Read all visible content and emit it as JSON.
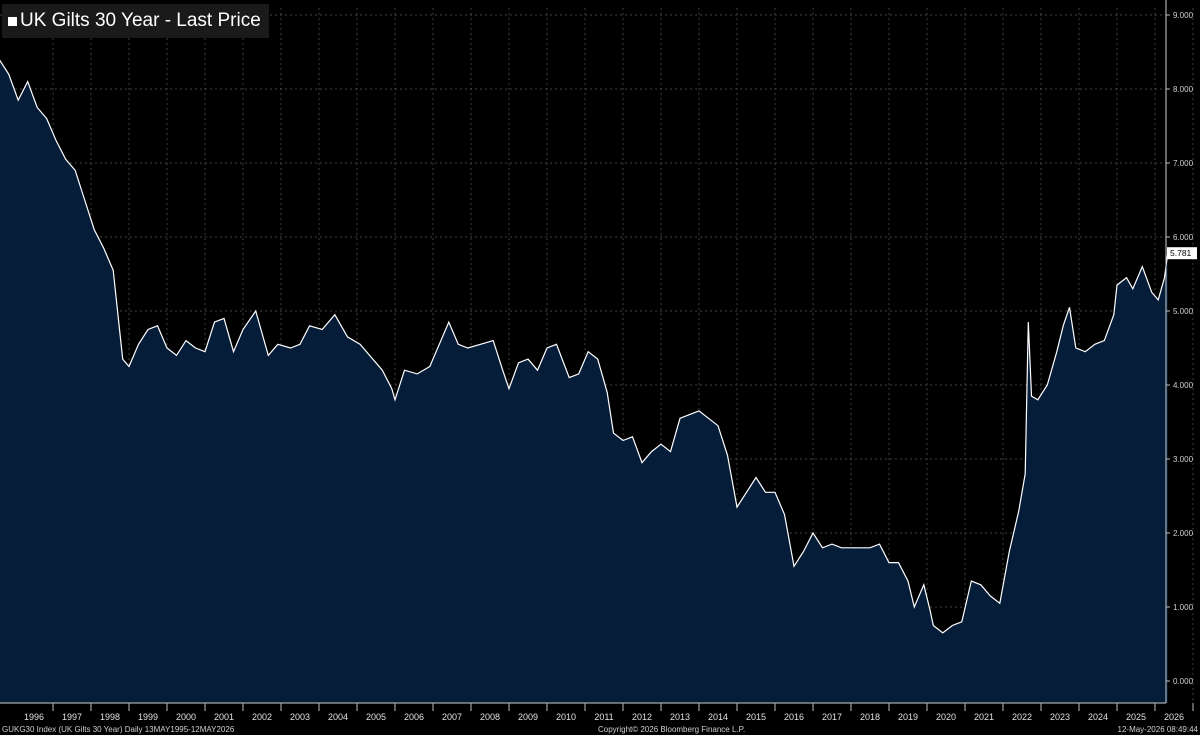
{
  "legend": {
    "label": "UK Gilts 30 Year - Last Price"
  },
  "footer": {
    "left": "GUKG30 Index (UK Gilts 30 Year) Daily 13MAY1995-12MAY2026",
    "center": "Copyright© 2026 Bloomberg Finance L.P.",
    "right": "12-May-2026 08:49:44"
  },
  "colors": {
    "background": "#000000",
    "area_fill": "#061d3a",
    "line": "#ffffff",
    "grid": "#5a5a5a",
    "last_label_bg": "#ffffff",
    "last_label_text": "#000000"
  },
  "chart_data": {
    "type": "area",
    "title": "UK Gilts 30 Year - Last Price",
    "xlabel": "",
    "ylabel": "",
    "x_ticks": [
      "1996",
      "1997",
      "1998",
      "1999",
      "2000",
      "2001",
      "2002",
      "2003",
      "2004",
      "2005",
      "2006",
      "2007",
      "2008",
      "2009",
      "2010",
      "2011",
      "2012",
      "2013",
      "2014",
      "2015",
      "2016",
      "2017",
      "2018",
      "2019",
      "2020",
      "2021",
      "2022",
      "2023",
      "2024",
      "2025",
      "2026"
    ],
    "y_ticks": [
      "0.000",
      "1.000",
      "2.000",
      "3.000",
      "4.000",
      "5.000",
      "6.000",
      "7.000",
      "8.000",
      "9.000"
    ],
    "ylim": [
      0,
      9.2
    ],
    "xlim": [
      "1995-05-13",
      "2026-05-12"
    ],
    "y_axis_side": "right",
    "grid": true,
    "last_value_label": "5.781",
    "series": [
      {
        "values": [
          [
            "1995-05",
            8.25
          ],
          [
            "1995-08",
            8.4
          ],
          [
            "1995-11",
            8.2
          ],
          [
            "1996-02",
            7.85
          ],
          [
            "1996-05",
            8.1
          ],
          [
            "1996-08",
            7.75
          ],
          [
            "1996-11",
            7.6
          ],
          [
            "1997-02",
            7.3
          ],
          [
            "1997-05",
            7.05
          ],
          [
            "1997-08",
            6.9
          ],
          [
            "1997-11",
            6.5
          ],
          [
            "1998-02",
            6.1
          ],
          [
            "1998-05",
            5.85
          ],
          [
            "1998-08",
            5.55
          ],
          [
            "1998-11",
            4.35
          ],
          [
            "1999-01",
            4.25
          ],
          [
            "1999-04",
            4.55
          ],
          [
            "1999-07",
            4.75
          ],
          [
            "1999-10",
            4.8
          ],
          [
            "2000-01",
            4.5
          ],
          [
            "2000-04",
            4.4
          ],
          [
            "2000-07",
            4.6
          ],
          [
            "2000-10",
            4.5
          ],
          [
            "2001-01",
            4.45
          ],
          [
            "2001-04",
            4.85
          ],
          [
            "2001-07",
            4.9
          ],
          [
            "2001-10",
            4.45
          ],
          [
            "2002-01",
            4.75
          ],
          [
            "2002-05",
            5.0
          ],
          [
            "2002-09",
            4.4
          ],
          [
            "2002-12",
            4.55
          ],
          [
            "2003-04",
            4.5
          ],
          [
            "2003-07",
            4.55
          ],
          [
            "2003-10",
            4.8
          ],
          [
            "2004-02",
            4.75
          ],
          [
            "2004-06",
            4.95
          ],
          [
            "2004-10",
            4.65
          ],
          [
            "2005-02",
            4.55
          ],
          [
            "2005-06",
            4.35
          ],
          [
            "2005-09",
            4.2
          ],
          [
            "2005-12",
            3.95
          ],
          [
            "2006-01",
            3.8
          ],
          [
            "2006-04",
            4.2
          ],
          [
            "2006-08",
            4.15
          ],
          [
            "2006-12",
            4.25
          ],
          [
            "2007-03",
            4.55
          ],
          [
            "2007-06",
            4.85
          ],
          [
            "2007-09",
            4.55
          ],
          [
            "2007-12",
            4.5
          ],
          [
            "2008-04",
            4.55
          ],
          [
            "2008-08",
            4.6
          ],
          [
            "2008-11",
            4.2
          ],
          [
            "2009-01",
            3.95
          ],
          [
            "2009-04",
            4.3
          ],
          [
            "2009-07",
            4.35
          ],
          [
            "2009-10",
            4.2
          ],
          [
            "2010-01",
            4.5
          ],
          [
            "2010-04",
            4.55
          ],
          [
            "2010-08",
            4.1
          ],
          [
            "2010-11",
            4.15
          ],
          [
            "2011-02",
            4.45
          ],
          [
            "2011-05",
            4.35
          ],
          [
            "2011-08",
            3.9
          ],
          [
            "2011-10",
            3.35
          ],
          [
            "2012-01",
            3.25
          ],
          [
            "2012-04",
            3.3
          ],
          [
            "2012-07",
            2.95
          ],
          [
            "2012-10",
            3.1
          ],
          [
            "2013-01",
            3.2
          ],
          [
            "2013-04",
            3.1
          ],
          [
            "2013-07",
            3.55
          ],
          [
            "2013-10",
            3.6
          ],
          [
            "2014-01",
            3.65
          ],
          [
            "2014-04",
            3.55
          ],
          [
            "2014-07",
            3.45
          ],
          [
            "2014-10",
            3.05
          ],
          [
            "2015-01",
            2.35
          ],
          [
            "2015-04",
            2.55
          ],
          [
            "2015-07",
            2.75
          ],
          [
            "2015-10",
            2.55
          ],
          [
            "2016-01",
            2.55
          ],
          [
            "2016-04",
            2.25
          ],
          [
            "2016-07",
            1.55
          ],
          [
            "2016-10",
            1.75
          ],
          [
            "2017-01",
            2.0
          ],
          [
            "2017-04",
            1.8
          ],
          [
            "2017-07",
            1.85
          ],
          [
            "2017-10",
            1.8
          ],
          [
            "2018-01",
            1.8
          ],
          [
            "2018-04",
            1.8
          ],
          [
            "2018-07",
            1.8
          ],
          [
            "2018-10",
            1.85
          ],
          [
            "2019-01",
            1.6
          ],
          [
            "2019-04",
            1.6
          ],
          [
            "2019-07",
            1.35
          ],
          [
            "2019-09",
            1.0
          ],
          [
            "2019-12",
            1.3
          ],
          [
            "2020-02",
            0.95
          ],
          [
            "2020-03",
            0.75
          ],
          [
            "2020-06",
            0.65
          ],
          [
            "2020-09",
            0.75
          ],
          [
            "2020-12",
            0.8
          ],
          [
            "2021-03",
            1.35
          ],
          [
            "2021-06",
            1.3
          ],
          [
            "2021-09",
            1.15
          ],
          [
            "2021-12",
            1.05
          ],
          [
            "2022-03",
            1.75
          ],
          [
            "2022-06",
            2.3
          ],
          [
            "2022-08",
            2.8
          ],
          [
            "2022-09",
            4.85
          ],
          [
            "2022-10",
            3.85
          ],
          [
            "2022-12",
            3.8
          ],
          [
            "2023-03",
            4.0
          ],
          [
            "2023-06",
            4.45
          ],
          [
            "2023-08",
            4.8
          ],
          [
            "2023-10",
            5.05
          ],
          [
            "2023-12",
            4.5
          ],
          [
            "2024-03",
            4.45
          ],
          [
            "2024-06",
            4.55
          ],
          [
            "2024-09",
            4.6
          ],
          [
            "2024-12",
            4.95
          ],
          [
            "2025-01",
            5.35
          ],
          [
            "2025-04",
            5.45
          ],
          [
            "2025-06",
            5.3
          ],
          [
            "2025-09",
            5.6
          ],
          [
            "2025-12",
            5.25
          ],
          [
            "2026-02",
            5.15
          ],
          [
            "2026-04",
            5.45
          ],
          [
            "2026-05",
            5.781
          ]
        ]
      }
    ]
  }
}
